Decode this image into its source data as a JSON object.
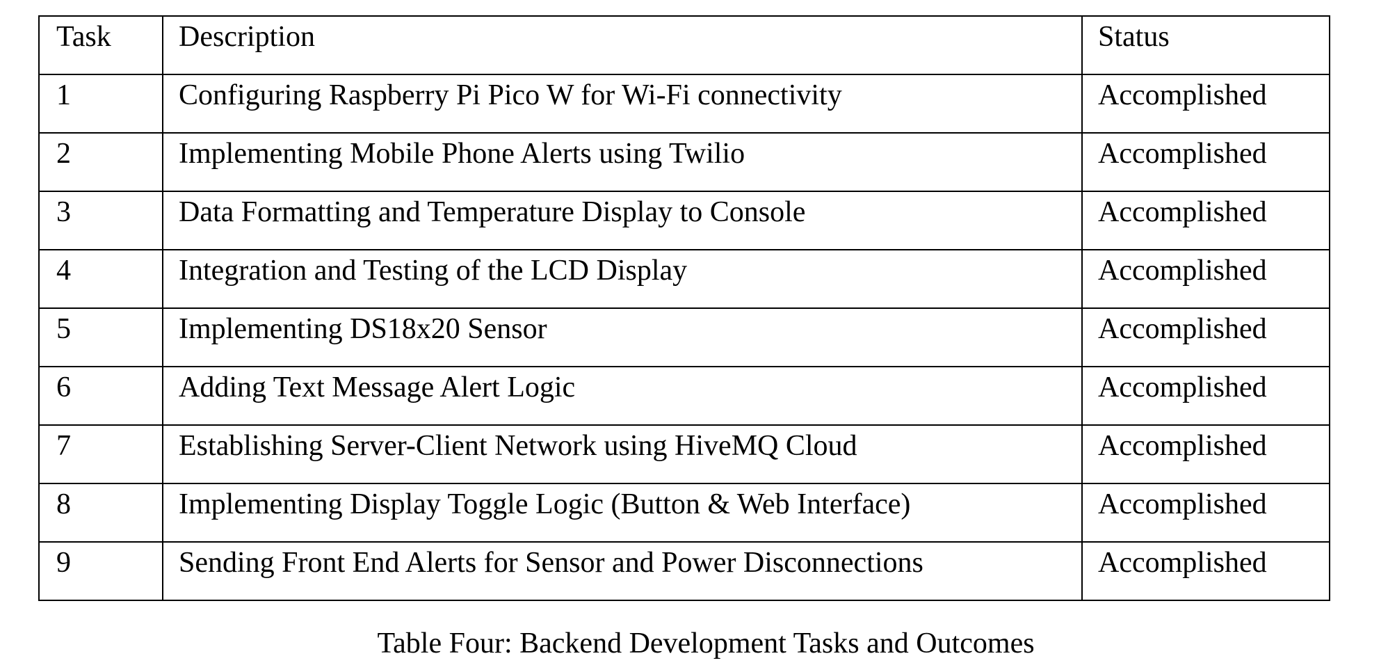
{
  "table": {
    "headers": [
      "Task",
      "Description",
      "Status"
    ],
    "rows": [
      {
        "task": "1",
        "description": "Configuring Raspberry Pi Pico W for Wi-Fi connectivity",
        "status": "Accomplished"
      },
      {
        "task": "2",
        "description": "Implementing Mobile Phone Alerts using Twilio",
        "status": "Accomplished"
      },
      {
        "task": "3",
        "description": "Data Formatting and Temperature Display to Console",
        "status": "Accomplished"
      },
      {
        "task": "4",
        "description": "Integration and Testing of the LCD Display",
        "status": "Accomplished"
      },
      {
        "task": "5",
        "description": "Implementing DS18x20 Sensor",
        "status": "Accomplished"
      },
      {
        "task": "6",
        "description": "Adding Text Message Alert Logic",
        "status": "Accomplished"
      },
      {
        "task": "7",
        "description": "Establishing Server-Client Network using HiveMQ Cloud",
        "status": "Accomplished"
      },
      {
        "task": "8",
        "description": "Implementing Display Toggle Logic (Button & Web Interface)",
        "status": "Accomplished"
      },
      {
        "task": "9",
        "description": "Sending Front End Alerts for Sensor and Power Disconnections",
        "status": "Accomplished"
      }
    ]
  },
  "caption": "Table Four: Backend Development Tasks and Outcomes"
}
